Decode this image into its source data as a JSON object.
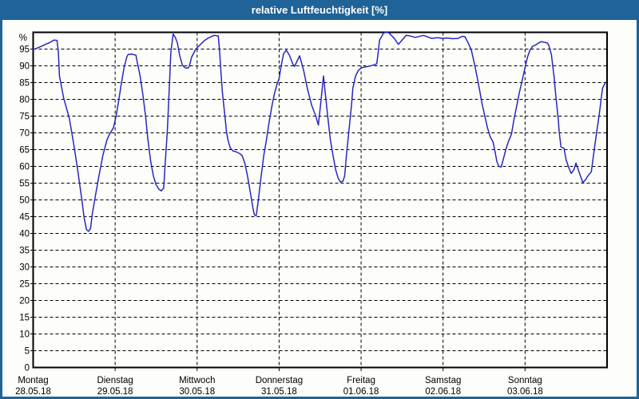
{
  "window": {
    "title": "relative Luftfeuchtigkeit [%]"
  },
  "axis": {
    "unit_label": "%",
    "y_tick_labels": [
      "0",
      "5",
      "10",
      "15",
      "20",
      "25",
      "30",
      "35",
      "40",
      "45",
      "50",
      "55",
      "60",
      "65",
      "70",
      "75",
      "80",
      "85",
      "90",
      "95"
    ],
    "days": [
      {
        "name": "Montag",
        "date": "28.05.18"
      },
      {
        "name": "Dienstag",
        "date": "29.05.18"
      },
      {
        "name": "Mittwoch",
        "date": "30.05.18"
      },
      {
        "name": "Donnerstag",
        "date": "31.05.18"
      },
      {
        "name": "Freitag",
        "date": "01.06.18"
      },
      {
        "name": "Samstag",
        "date": "02.06.18"
      },
      {
        "name": "Sonntag",
        "date": "03.06.18"
      }
    ]
  },
  "colors": {
    "titlebar_background": "#1f6398",
    "window_border": "#1f6398",
    "title_text": "#ffffff",
    "plot_background": "#fdfdfa",
    "plot_border": "#000000",
    "gridline": "#000000",
    "line": "#2727c3",
    "label_text": "#000000"
  },
  "chart_data": {
    "type": "line",
    "title": "relative Luftfeuchtigkeit [%]",
    "ylabel": "%",
    "ylim": [
      0,
      100
    ],
    "y_tick_step": 5,
    "grid": true,
    "x_unit": "hours since Montag 28.05.18 00:00",
    "xlim": [
      0,
      168
    ],
    "x_day_ticks_hours": [
      0,
      24,
      48,
      72,
      96,
      120,
      144
    ],
    "x_categories": [
      "Montag 28.05.18",
      "Dienstag 29.05.18",
      "Mittwoch 30.05.18",
      "Donnerstag 31.05.18",
      "Freitag 01.06.18",
      "Samstag 02.06.18",
      "Sonntag 03.06.18"
    ],
    "series": [
      {
        "name": "relative Luftfeuchtigkeit [%]",
        "points": [
          [
            0,
            94.8
          ],
          [
            1.2,
            95.3
          ],
          [
            2.4,
            95.8
          ],
          [
            3.6,
            96.4
          ],
          [
            4.8,
            96.9
          ],
          [
            6.1,
            97.7
          ],
          [
            7,
            97.6
          ],
          [
            7.4,
            94
          ],
          [
            7.7,
            87
          ],
          [
            8.9,
            80.5
          ],
          [
            10.6,
            74.3
          ],
          [
            11.8,
            67.1
          ],
          [
            13,
            59.2
          ],
          [
            14.2,
            50.5
          ],
          [
            14.9,
            44.9
          ],
          [
            15.6,
            41.2
          ],
          [
            16.2,
            40.6
          ],
          [
            16.8,
            41.5
          ],
          [
            17.3,
            45.7
          ],
          [
            18.1,
            50.5
          ],
          [
            19.2,
            56.8
          ],
          [
            20.4,
            63.2
          ],
          [
            21.6,
            67.9
          ],
          [
            22.3,
            69.5
          ],
          [
            23.5,
            71.5
          ],
          [
            24.3,
            75.1
          ],
          [
            25.1,
            79.9
          ],
          [
            25.8,
            84.6
          ],
          [
            26.6,
            89.4
          ],
          [
            27.4,
            92.6
          ],
          [
            27.8,
            93.4
          ],
          [
            28.9,
            93.5
          ],
          [
            30.1,
            93.2
          ],
          [
            30.5,
            91
          ],
          [
            31.3,
            87
          ],
          [
            32.1,
            81.5
          ],
          [
            32.9,
            75.1
          ],
          [
            33.6,
            67.9
          ],
          [
            34.4,
            61.6
          ],
          [
            35.2,
            57.2
          ],
          [
            36,
            54.5
          ],
          [
            36.8,
            53.2
          ],
          [
            37.5,
            52.7
          ],
          [
            38.2,
            53.5
          ],
          [
            38.6,
            60
          ],
          [
            39.3,
            71.1
          ],
          [
            39.8,
            82.2
          ],
          [
            40.3,
            94.1
          ],
          [
            41,
            99.5
          ],
          [
            41.6,
            98.5
          ],
          [
            42.2,
            96.9
          ],
          [
            42.9,
            93
          ],
          [
            43.7,
            90.2
          ],
          [
            44.5,
            89.4
          ],
          [
            45.3,
            89.3
          ],
          [
            45.7,
            89.8
          ],
          [
            46.4,
            92.6
          ],
          [
            47.6,
            95
          ],
          [
            48.8,
            96.2
          ],
          [
            50,
            97.4
          ],
          [
            51.1,
            98.2
          ],
          [
            52.3,
            98.8
          ],
          [
            53.1,
            99.1
          ],
          [
            54.2,
            98.9
          ],
          [
            54.6,
            94.1
          ],
          [
            55,
            87.8
          ],
          [
            55.4,
            82.2
          ],
          [
            55.8,
            78.3
          ],
          [
            56.2,
            74.3
          ],
          [
            56.6,
            70.3
          ],
          [
            57,
            67.9
          ],
          [
            57.7,
            65.5
          ],
          [
            58.5,
            64.6
          ],
          [
            59.3,
            64.4
          ],
          [
            60.5,
            63.8
          ],
          [
            61.2,
            63.2
          ],
          [
            62,
            60.8
          ],
          [
            62.8,
            56.8
          ],
          [
            63.6,
            52.1
          ],
          [
            64.4,
            47.3
          ],
          [
            64.8,
            45.5
          ],
          [
            65.3,
            45.3
          ],
          [
            65.9,
            49.7
          ],
          [
            66.7,
            56.8
          ],
          [
            67.5,
            63.2
          ],
          [
            68.3,
            67.9
          ],
          [
            69,
            72.7
          ],
          [
            69.8,
            77.5
          ],
          [
            70.6,
            81.5
          ],
          [
            71.4,
            84.6
          ],
          [
            72,
            86.2
          ],
          [
            72.6,
            90
          ],
          [
            73.3,
            93.6
          ],
          [
            74.1,
            94.7
          ],
          [
            75,
            93.2
          ],
          [
            76,
            90.6
          ],
          [
            76.5,
            89.8
          ],
          [
            77.2,
            91.3
          ],
          [
            78,
            93
          ],
          [
            79.2,
            88.6
          ],
          [
            80.3,
            83.1
          ],
          [
            81.5,
            78.3
          ],
          [
            82.7,
            75.1
          ],
          [
            83.5,
            72.3
          ],
          [
            84.3,
            79.9
          ],
          [
            85,
            87
          ],
          [
            85.4,
            83.1
          ],
          [
            86.2,
            75.1
          ],
          [
            87,
            67.9
          ],
          [
            87.8,
            63.2
          ],
          [
            88.5,
            59.2
          ],
          [
            89.3,
            56.4
          ],
          [
            90,
            55.3
          ],
          [
            90.7,
            55.6
          ],
          [
            91.2,
            57.2
          ],
          [
            91.7,
            63.2
          ],
          [
            92.4,
            70.3
          ],
          [
            93.2,
            78.3
          ],
          [
            93.6,
            83.4
          ],
          [
            94.4,
            87
          ],
          [
            95.2,
            88.6
          ],
          [
            96,
            89.4
          ],
          [
            97,
            89.6
          ],
          [
            98,
            89.8
          ],
          [
            99.5,
            90.2
          ],
          [
            100.6,
            90.6
          ],
          [
            101,
            94.1
          ],
          [
            101.4,
            97.7
          ],
          [
            102.6,
            99.8
          ],
          [
            103.4,
            100
          ],
          [
            104.2,
            99.8
          ],
          [
            105.7,
            98.2
          ],
          [
            106.9,
            96.4
          ],
          [
            108,
            97.7
          ],
          [
            109.2,
            99.1
          ],
          [
            110,
            99
          ],
          [
            111.9,
            98.5
          ],
          [
            114.3,
            99.1
          ],
          [
            116.6,
            98.2
          ],
          [
            118.5,
            98.4
          ],
          [
            119.7,
            98.2
          ],
          [
            121.3,
            98.3
          ],
          [
            122.9,
            98.1
          ],
          [
            124.4,
            98.2
          ],
          [
            125.6,
            98.8
          ],
          [
            126.4,
            98.7
          ],
          [
            127.5,
            96.5
          ],
          [
            128.3,
            94.6
          ],
          [
            129.1,
            91
          ],
          [
            129.9,
            87
          ],
          [
            130.7,
            82.7
          ],
          [
            131.4,
            78.7
          ],
          [
            132.2,
            75.1
          ],
          [
            133,
            71.5
          ],
          [
            133.8,
            68.8
          ],
          [
            134.6,
            67.3
          ],
          [
            135.3,
            64
          ],
          [
            135.7,
            61.6
          ],
          [
            136.3,
            60
          ],
          [
            137,
            59.8
          ],
          [
            137.7,
            62.4
          ],
          [
            138.4,
            65.2
          ],
          [
            139.2,
            67.6
          ],
          [
            140,
            69.6
          ],
          [
            140.8,
            74.3
          ],
          [
            141.6,
            78.3
          ],
          [
            142.3,
            81.9
          ],
          [
            143.1,
            85.4
          ],
          [
            143.9,
            89
          ],
          [
            144.7,
            92.6
          ],
          [
            145.4,
            94.6
          ],
          [
            146.2,
            95.8
          ],
          [
            147,
            96.2
          ],
          [
            148.6,
            97.2
          ],
          [
            149.4,
            97.1
          ],
          [
            150.5,
            96.8
          ],
          [
            150.9,
            96.2
          ],
          [
            151.7,
            93.4
          ],
          [
            152.5,
            86.7
          ],
          [
            153.1,
            79.9
          ],
          [
            153.7,
            74.4
          ],
          [
            154,
            70.3
          ],
          [
            154.5,
            65.8
          ],
          [
            155.4,
            65.4
          ],
          [
            156,
            62
          ],
          [
            156.8,
            59.6
          ],
          [
            157.5,
            57.9
          ],
          [
            158.3,
            59
          ],
          [
            158.9,
            61
          ],
          [
            159.9,
            58
          ],
          [
            160.9,
            55.2
          ],
          [
            161.7,
            56
          ],
          [
            162.4,
            57.2
          ],
          [
            163.4,
            58.4
          ],
          [
            164.5,
            66.8
          ],
          [
            165.7,
            75.5
          ],
          [
            166.7,
            83.4
          ],
          [
            167.6,
            85.1
          ]
        ]
      }
    ]
  }
}
